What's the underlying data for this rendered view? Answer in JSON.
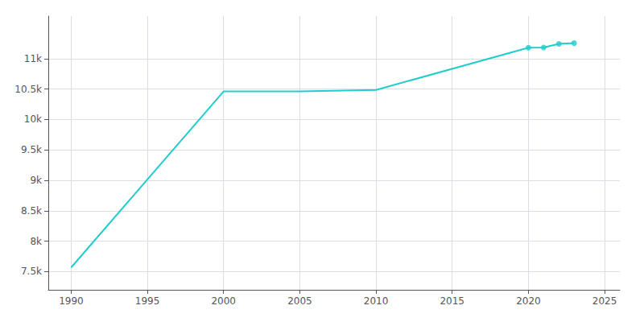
{
  "chart_data": {
    "type": "line",
    "series": [
      {
        "type": "line",
        "color": "#22CCCC",
        "marker": "none",
        "x": [
          1990,
          2000,
          2005,
          2010,
          2020,
          2021,
          2022,
          2023
        ],
        "values": [
          7567,
          10461,
          10461,
          10486,
          11181,
          11184,
          11244,
          11255
        ]
      },
      {
        "type": "scatter",
        "color": "#22CCCC",
        "marker": "circle",
        "x": [
          2020,
          2021,
          2022,
          2023
        ],
        "values": [
          11181,
          11184,
          11244,
          11255
        ]
      }
    ],
    "xlim": [
      1988.5,
      2026
    ],
    "xticks": [
      1990,
      1995,
      2000,
      2005,
      2010,
      2015,
      2020,
      2025
    ],
    "ylim": [
      7200,
      11700
    ],
    "yticks": [
      {
        "value": 7500,
        "label": "7.5k"
      },
      {
        "value": 8000,
        "label": "8k"
      },
      {
        "value": 8500,
        "label": "8.5k"
      },
      {
        "value": 9000,
        "label": "9k"
      },
      {
        "value": 9500,
        "label": "9.5k"
      },
      {
        "value": 10000,
        "label": "10k"
      },
      {
        "value": 10500,
        "label": "10.5k"
      },
      {
        "value": 11000,
        "label": "11k"
      }
    ],
    "grid": true
  }
}
